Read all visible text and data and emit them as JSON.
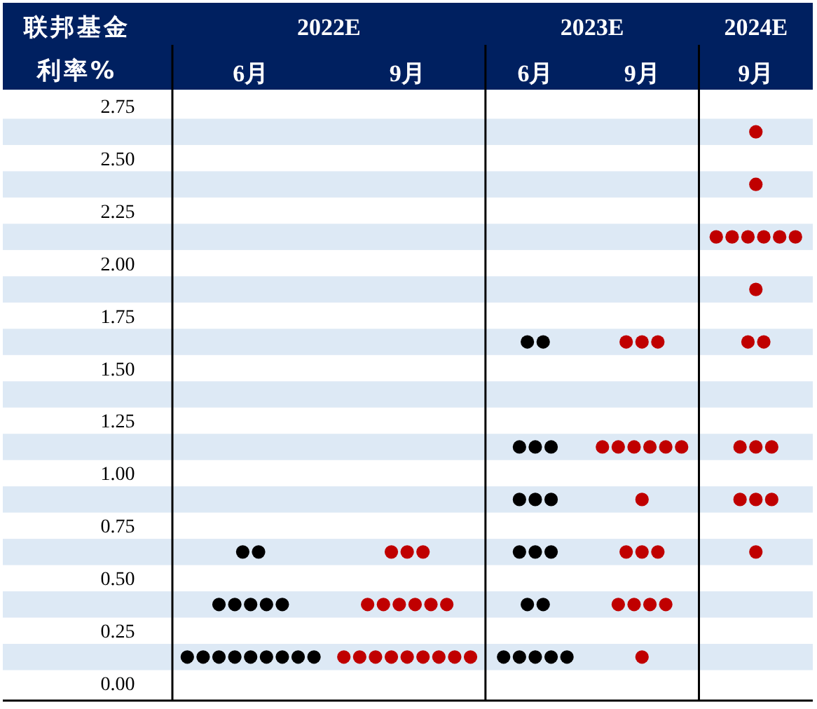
{
  "chart_data": [
    {
      "type": "scatter",
      "title": "2022E",
      "ylabel": "联邦基金利率%",
      "categories": [
        "6月",
        "9月"
      ],
      "ylim": [
        -0.0625,
        2.8125
      ],
      "yticks": [
        {
          "value": 0,
          "label": "0.00"
        },
        {
          "value": 0.25,
          "label": "0.25"
        },
        {
          "value": 0.5,
          "label": "0.50"
        },
        {
          "value": 0.75,
          "label": "0.75"
        },
        {
          "value": 1,
          "label": "1.00"
        },
        {
          "value": 1.25,
          "label": "1.25"
        },
        {
          "value": 1.5,
          "label": "1.50"
        },
        {
          "value": 1.75,
          "label": "1.75"
        },
        {
          "value": 2,
          "label": "2.00"
        },
        {
          "value": 2.25,
          "label": "2.25"
        },
        {
          "value": 2.5,
          "label": "2.50"
        },
        {
          "value": 2.75,
          "label": "2.75"
        }
      ],
      "bands": [
        {
          "axis": "y",
          "from": 0.0625,
          "to": 0.1875,
          "color": "#dde9f5"
        },
        {
          "axis": "y",
          "from": 0.3125,
          "to": 0.4375,
          "color": "#dde9f5"
        },
        {
          "axis": "y",
          "from": 0.5625,
          "to": 0.6875,
          "color": "#dde9f5"
        },
        {
          "axis": "y",
          "from": 0.8125,
          "to": 0.9375,
          "color": "#dde9f5"
        },
        {
          "axis": "y",
          "from": 1.0625,
          "to": 1.1875,
          "color": "#dde9f5"
        },
        {
          "axis": "y",
          "from": 1.3125,
          "to": 1.4375,
          "color": "#dde9f5"
        },
        {
          "axis": "y",
          "from": 1.5625,
          "to": 1.6875,
          "color": "#dde9f5"
        },
        {
          "axis": "y",
          "from": 1.8125,
          "to": 1.9375,
          "color": "#dde9f5"
        },
        {
          "axis": "y",
          "from": 2.0625,
          "to": 2.1875,
          "color": "#dde9f5"
        },
        {
          "axis": "y",
          "from": 2.3125,
          "to": 2.4375,
          "color": "#dde9f5"
        },
        {
          "axis": "y",
          "from": 2.5625,
          "to": 2.6875,
          "color": "#dde9f5"
        }
      ],
      "marker": "circle",
      "series": [
        {
          "color": "#000000",
          "x": [
            "6月",
            "6月",
            "6月",
            "6月",
            "6月",
            "6月",
            "6月",
            "6月",
            "6月",
            "6月",
            "6月",
            "6月",
            "6月",
            "6月",
            "6月",
            "6月"
          ],
          "values": [
            0.125,
            0.125,
            0.125,
            0.125,
            0.125,
            0.125,
            0.125,
            0.125,
            0.125,
            0.375,
            0.375,
            0.375,
            0.375,
            0.375,
            0.625,
            0.625
          ]
        },
        {
          "color": "#c00000",
          "x": [
            "9月",
            "9月",
            "9月",
            "9月",
            "9月",
            "9月",
            "9月",
            "9月",
            "9月",
            "9月",
            "9月",
            "9月",
            "9月",
            "9月",
            "9月",
            "9月",
            "9月",
            "9月"
          ],
          "values": [
            0.125,
            0.125,
            0.125,
            0.125,
            0.125,
            0.125,
            0.125,
            0.125,
            0.125,
            0.375,
            0.375,
            0.375,
            0.375,
            0.375,
            0.375,
            0.625,
            0.625,
            0.625
          ]
        }
      ]
    },
    {
      "type": "scatter",
      "title": "2023E",
      "categories": [
        "6月",
        "9月"
      ],
      "ylim": [
        -0.0625,
        2.8125
      ],
      "tick_labels": "x",
      "bands": [
        {
          "axis": "y",
          "from": 0.0625,
          "to": 0.1875,
          "color": "#dde9f5"
        },
        {
          "axis": "y",
          "from": 0.3125,
          "to": 0.4375,
          "color": "#dde9f5"
        },
        {
          "axis": "y",
          "from": 0.5625,
          "to": 0.6875,
          "color": "#dde9f5"
        },
        {
          "axis": "y",
          "from": 0.8125,
          "to": 0.9375,
          "color": "#dde9f5"
        },
        {
          "axis": "y",
          "from": 1.0625,
          "to": 1.1875,
          "color": "#dde9f5"
        },
        {
          "axis": "y",
          "from": 1.3125,
          "to": 1.4375,
          "color": "#dde9f5"
        },
        {
          "axis": "y",
          "from": 1.5625,
          "to": 1.6875,
          "color": "#dde9f5"
        },
        {
          "axis": "y",
          "from": 1.8125,
          "to": 1.9375,
          "color": "#dde9f5"
        },
        {
          "axis": "y",
          "from": 2.0625,
          "to": 2.1875,
          "color": "#dde9f5"
        },
        {
          "axis": "y",
          "from": 2.3125,
          "to": 2.4375,
          "color": "#dde9f5"
        },
        {
          "axis": "y",
          "from": 2.5625,
          "to": 2.6875,
          "color": "#dde9f5"
        }
      ],
      "marker": "circle",
      "series": [
        {
          "color": "#000000",
          "x": [
            "6月",
            "6月",
            "6月",
            "6月",
            "6月",
            "6月",
            "6月",
            "6月",
            "6月",
            "6月",
            "6月",
            "6月",
            "6月",
            "6月",
            "6月",
            "6月",
            "6月",
            "6月"
          ],
          "values": [
            0.125,
            0.125,
            0.125,
            0.125,
            0.125,
            0.375,
            0.375,
            0.625,
            0.625,
            0.625,
            0.875,
            0.875,
            0.875,
            1.125,
            1.125,
            1.125,
            1.625,
            1.625
          ]
        },
        {
          "color": "#c00000",
          "x": [
            "9月",
            "9月",
            "9月",
            "9月",
            "9月",
            "9月",
            "9月",
            "9月",
            "9月",
            "9月",
            "9月",
            "9月",
            "9月",
            "9月",
            "9月",
            "9月",
            "9月",
            "9月"
          ],
          "values": [
            0.125,
            0.375,
            0.375,
            0.375,
            0.375,
            0.625,
            0.625,
            0.625,
            0.875,
            1.125,
            1.125,
            1.125,
            1.125,
            1.125,
            1.125,
            1.625,
            1.625,
            1.625
          ]
        }
      ]
    },
    {
      "type": "scatter",
      "title": "2024E",
      "categories": [
        "9月"
      ],
      "ylim": [
        -0.0625,
        2.8125
      ],
      "tick_labels": "x",
      "bands": [
        {
          "axis": "y",
          "from": 0.0625,
          "to": 0.1875,
          "color": "#dde9f5"
        },
        {
          "axis": "y",
          "from": 0.3125,
          "to": 0.4375,
          "color": "#dde9f5"
        },
        {
          "axis": "y",
          "from": 0.5625,
          "to": 0.6875,
          "color": "#dde9f5"
        },
        {
          "axis": "y",
          "from": 0.8125,
          "to": 0.9375,
          "color": "#dde9f5"
        },
        {
          "axis": "y",
          "from": 1.0625,
          "to": 1.1875,
          "color": "#dde9f5"
        },
        {
          "axis": "y",
          "from": 1.3125,
          "to": 1.4375,
          "color": "#dde9f5"
        },
        {
          "axis": "y",
          "from": 1.5625,
          "to": 1.6875,
          "color": "#dde9f5"
        },
        {
          "axis": "y",
          "from": 1.8125,
          "to": 1.9375,
          "color": "#dde9f5"
        },
        {
          "axis": "y",
          "from": 2.0625,
          "to": 2.1875,
          "color": "#dde9f5"
        },
        {
          "axis": "y",
          "from": 2.3125,
          "to": 2.4375,
          "color": "#dde9f5"
        },
        {
          "axis": "y",
          "from": 2.5625,
          "to": 2.6875,
          "color": "#dde9f5"
        }
      ],
      "marker": "circle",
      "series": [
        {
          "color": "#c00000",
          "x": [
            "9月",
            "9月",
            "9月",
            "9月",
            "9月",
            "9月",
            "9月",
            "9月",
            "9月",
            "9月",
            "9月",
            "9月",
            "9月",
            "9月",
            "9月",
            "9月",
            "9月",
            "9月"
          ],
          "values": [
            0.625,
            0.875,
            0.875,
            0.875,
            1.125,
            1.125,
            1.125,
            1.625,
            1.625,
            1.875,
            2.125,
            2.125,
            2.125,
            2.125,
            2.125,
            2.125,
            2.375,
            2.625
          ]
        }
      ]
    }
  ]
}
